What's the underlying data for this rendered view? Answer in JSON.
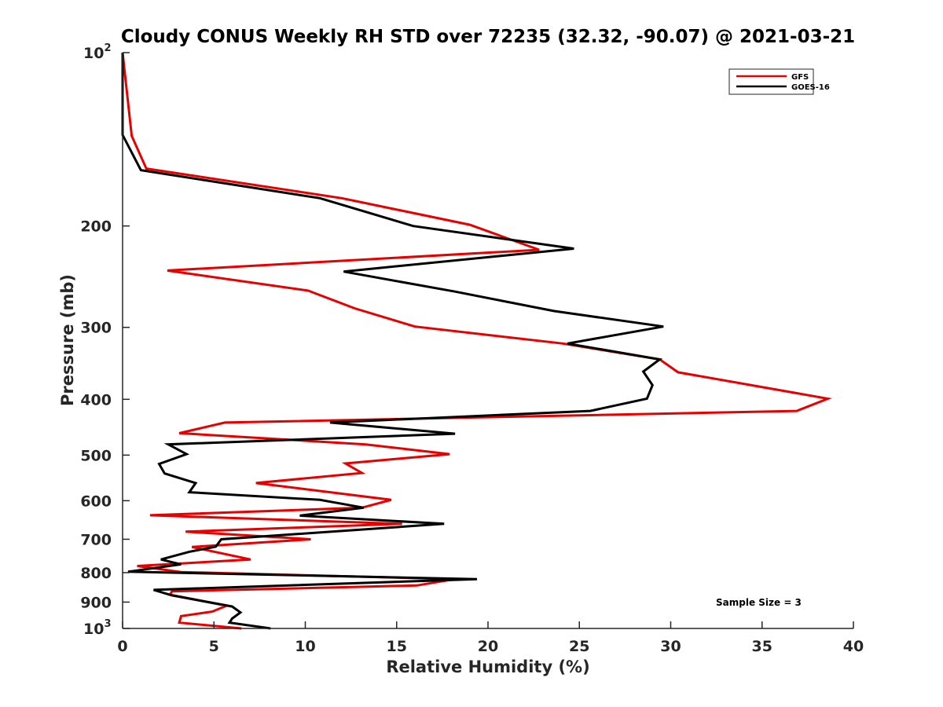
{
  "chart_data": {
    "type": "line",
    "title": "Cloudy CONUS Weekly RH STD over 72235 (32.32, -90.07) @ 2021-03-21",
    "xlabel": "Relative Humidity (%)",
    "ylabel": "Pressure (mb)",
    "xlim": [
      0,
      40
    ],
    "ylim": [
      100,
      1000
    ],
    "yscale": "log",
    "yreversed": true,
    "grid": false,
    "legend_position": "top-right",
    "x_ticks": [
      0,
      5,
      10,
      15,
      20,
      25,
      30,
      35,
      40
    ],
    "x_tick_labels": [
      "0",
      "5",
      "10",
      "15",
      "20",
      "25",
      "30",
      "35",
      "40"
    ],
    "y_ticks": [
      100,
      200,
      300,
      400,
      500,
      600,
      700,
      800,
      900,
      1000
    ],
    "y_tick_labels": [
      {
        "base": "10",
        "exp": "2"
      },
      {
        "text": "200"
      },
      {
        "text": "300"
      },
      {
        "text": "400"
      },
      {
        "text": "500"
      },
      {
        "text": "600"
      },
      {
        "text": "700"
      },
      {
        "text": "800"
      },
      {
        "text": "900"
      },
      {
        "base": "10",
        "exp": "3"
      }
    ],
    "annotation": "Sample Size = 3",
    "series": [
      {
        "name": "GFS",
        "color": "#e60000",
        "points": [
          [
            0,
            100
          ],
          [
            0.5,
            139.5
          ],
          [
            1.3,
            159
          ],
          [
            12,
            179
          ],
          [
            19,
            199
          ],
          [
            22.8,
            220
          ],
          [
            2.45,
            239
          ],
          [
            10.15,
            259
          ],
          [
            12.7,
            278
          ],
          [
            16,
            299
          ],
          [
            24.1,
            320
          ],
          [
            29.4,
            341
          ],
          [
            30.4,
            359
          ],
          [
            38.6,
            399
          ],
          [
            36.9,
            419
          ],
          [
            5.6,
            439
          ],
          [
            3.1,
            458
          ],
          [
            13.3,
            479
          ],
          [
            17.9,
            498
          ],
          [
            12.2,
            517
          ],
          [
            13.1,
            537
          ],
          [
            7.3,
            559
          ],
          [
            14.7,
            598
          ],
          [
            13.1,
            617
          ],
          [
            1.5,
            636
          ],
          [
            15.3,
            658
          ],
          [
            3.45,
            679
          ],
          [
            10.3,
            700
          ],
          [
            3.8,
            722
          ],
          [
            7.0,
            759
          ],
          [
            0.8,
            779
          ],
          [
            3.2,
            798
          ],
          [
            18.2,
            821
          ],
          [
            16.1,
            842
          ],
          [
            2.7,
            862
          ],
          [
            2.6,
            874
          ],
          [
            5.7,
            913
          ],
          [
            4.9,
            935
          ],
          [
            3.2,
            952
          ],
          [
            3.1,
            977
          ],
          [
            6.5,
            1000
          ]
        ]
      },
      {
        "name": "GOES-16",
        "color": "#000000",
        "points": [
          [
            0,
            100
          ],
          [
            0,
            139
          ],
          [
            1.0,
            160
          ],
          [
            10.8,
            179
          ],
          [
            15.9,
            200
          ],
          [
            24.7,
            219
          ],
          [
            12.1,
            240
          ],
          [
            18.2,
            260
          ],
          [
            23.6,
            281
          ],
          [
            29.6,
            299
          ],
          [
            24.35,
            320
          ],
          [
            29.4,
            341
          ],
          [
            28.5,
            358
          ],
          [
            29.0,
            378
          ],
          [
            28.7,
            399
          ],
          [
            25.6,
            419
          ],
          [
            11.35,
            439
          ],
          [
            18.2,
            459
          ],
          [
            2.5,
            479
          ],
          [
            3.5,
            498
          ],
          [
            2.0,
            518
          ],
          [
            2.3,
            538
          ],
          [
            4.0,
            559
          ],
          [
            3.65,
            580
          ],
          [
            10.8,
            598
          ],
          [
            13.2,
            617
          ],
          [
            9.7,
            637
          ],
          [
            17.6,
            658
          ],
          [
            5.4,
            700
          ],
          [
            5.1,
            721
          ],
          [
            3.65,
            736
          ],
          [
            2.1,
            759
          ],
          [
            3.2,
            774
          ],
          [
            0.3,
            797
          ],
          [
            19.4,
            821
          ],
          [
            1.7,
            857
          ],
          [
            2.7,
            876
          ],
          [
            6.0,
            916
          ],
          [
            6.45,
            938
          ],
          [
            6.0,
            961
          ],
          [
            5.85,
            977
          ],
          [
            8.1,
            1000
          ]
        ]
      }
    ]
  }
}
